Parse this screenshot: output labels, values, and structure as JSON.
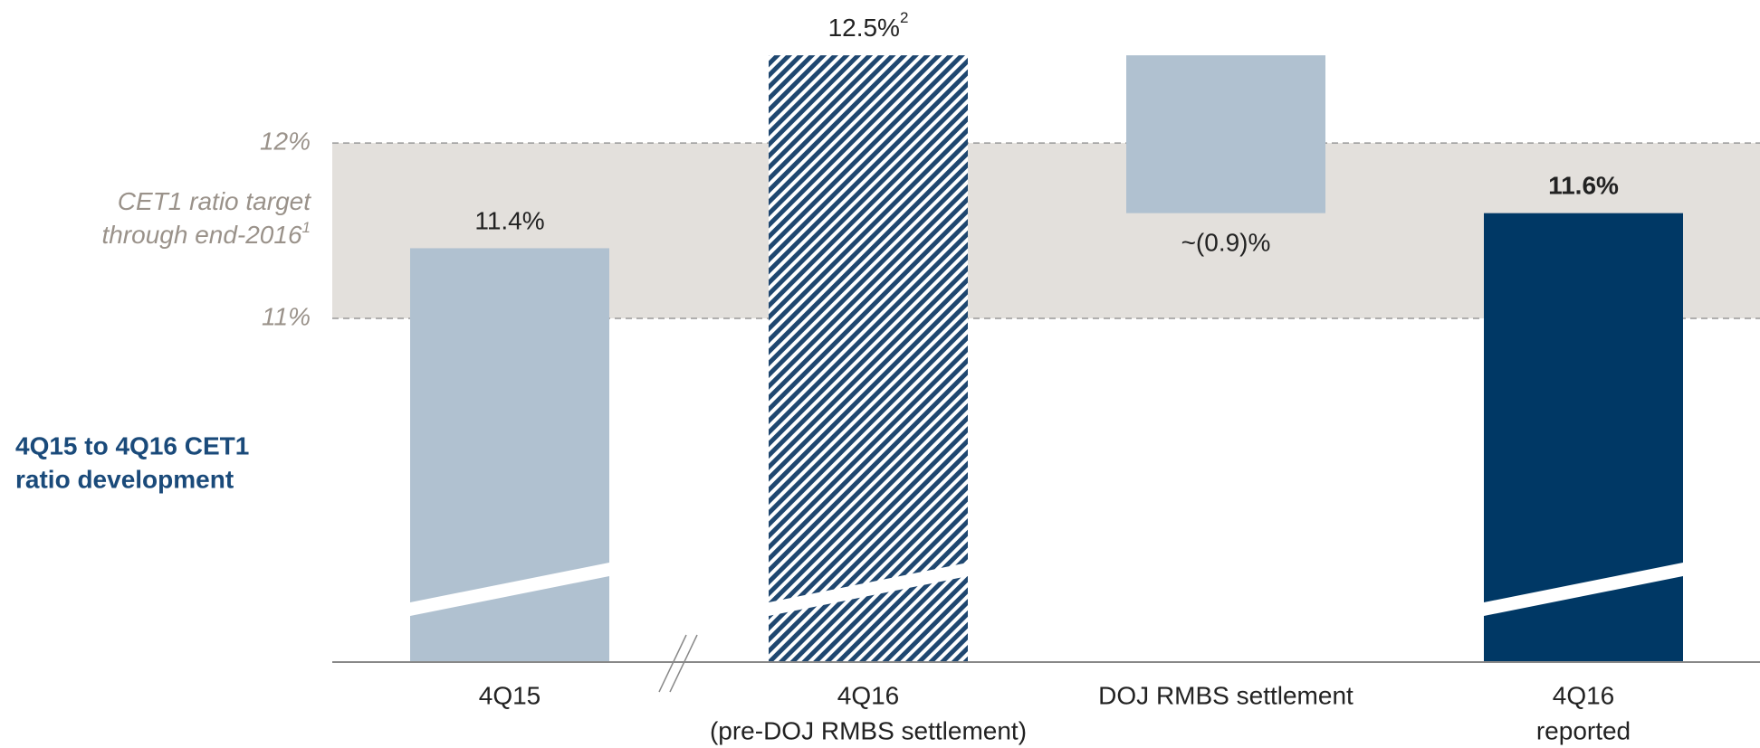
{
  "chart_data": {
    "type": "waterfall",
    "title": [
      "4Q15 to 4Q16 CET1",
      "ratio development"
    ],
    "categories": [
      [
        "4Q15"
      ],
      [
        "4Q16",
        "(pre-DOJ RMBS settlement)"
      ],
      [
        "DOJ RMBS settlement"
      ],
      [
        "4Q16",
        "reported"
      ]
    ],
    "values": [
      11.4,
      12.5,
      -0.9,
      11.6
    ],
    "value_labels": [
      "11.4%",
      "12.5%",
      "~(0.9)%",
      "11.6%"
    ],
    "value_label_notes": {
      "1": "2"
    },
    "kinds": [
      "total",
      "total",
      "delta",
      "total"
    ],
    "styles": [
      "solid",
      "hatch",
      "solid",
      "solid"
    ],
    "colors": [
      "#b0c1d0",
      "#1f4770",
      "#b0c1d0",
      "#003865"
    ],
    "highlight": 3,
    "ylim": [
      9.04,
      12.8
    ],
    "yticks": [
      {
        "value": 11,
        "label": "11%"
      },
      {
        "value": 12,
        "label": "12%"
      }
    ],
    "target_band": {
      "from": 11,
      "to": 12,
      "label": [
        "CET1 ratio target",
        "through end-2016"
      ],
      "note": "1",
      "color": "#e3e0dc"
    }
  }
}
